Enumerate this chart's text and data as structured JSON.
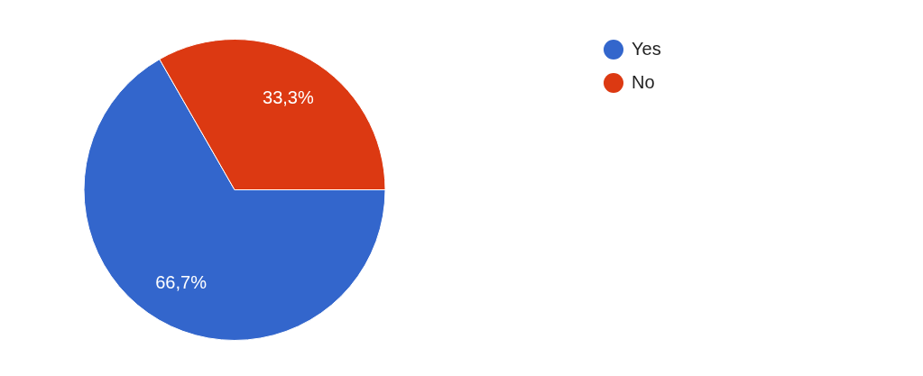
{
  "chart_data": {
    "type": "pie",
    "categories": [
      "Yes",
      "No"
    ],
    "values": [
      66.7,
      33.3
    ],
    "colors": [
      "#3366cc",
      "#dc3912"
    ],
    "value_labels": [
      "66,7%",
      "33,3%"
    ],
    "legend": "top right"
  }
}
